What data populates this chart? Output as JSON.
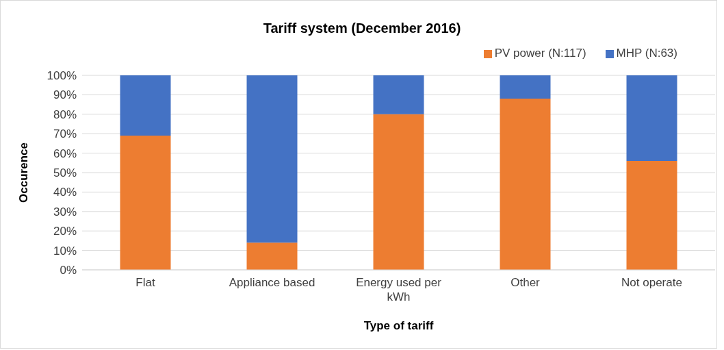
{
  "chart_data": {
    "type": "bar",
    "stacked": true,
    "title": "Tariff system (December 2016)",
    "xlabel": "Type of tariff",
    "ylabel": "Occurence",
    "categories": [
      "Flat",
      "Appliance based",
      "Energy used per kWh",
      "Other",
      "Not operate"
    ],
    "series": [
      {
        "name": "PV power (N:117)",
        "color": "#ed7d31",
        "values": [
          69,
          14,
          80,
          88,
          56
        ]
      },
      {
        "name": "MHP (N:63)",
        "color": "#4472c4",
        "values": [
          31,
          86,
          20,
          12,
          44
        ]
      }
    ],
    "ylim": [
      0,
      100
    ],
    "yticks": [
      {
        "value": 0,
        "label": "0%"
      },
      {
        "value": 10,
        "label": "10%"
      },
      {
        "value": 20,
        "label": "20%"
      },
      {
        "value": 30,
        "label": "30%"
      },
      {
        "value": 40,
        "label": "40%"
      },
      {
        "value": 50,
        "label": "50%"
      },
      {
        "value": 60,
        "label": "60%"
      },
      {
        "value": 70,
        "label": "70%"
      },
      {
        "value": 80,
        "label": "80%"
      },
      {
        "value": 90,
        "label": "90%"
      },
      {
        "value": 100,
        "label": "100%"
      }
    ],
    "grid": "y",
    "legend": "top right"
  }
}
